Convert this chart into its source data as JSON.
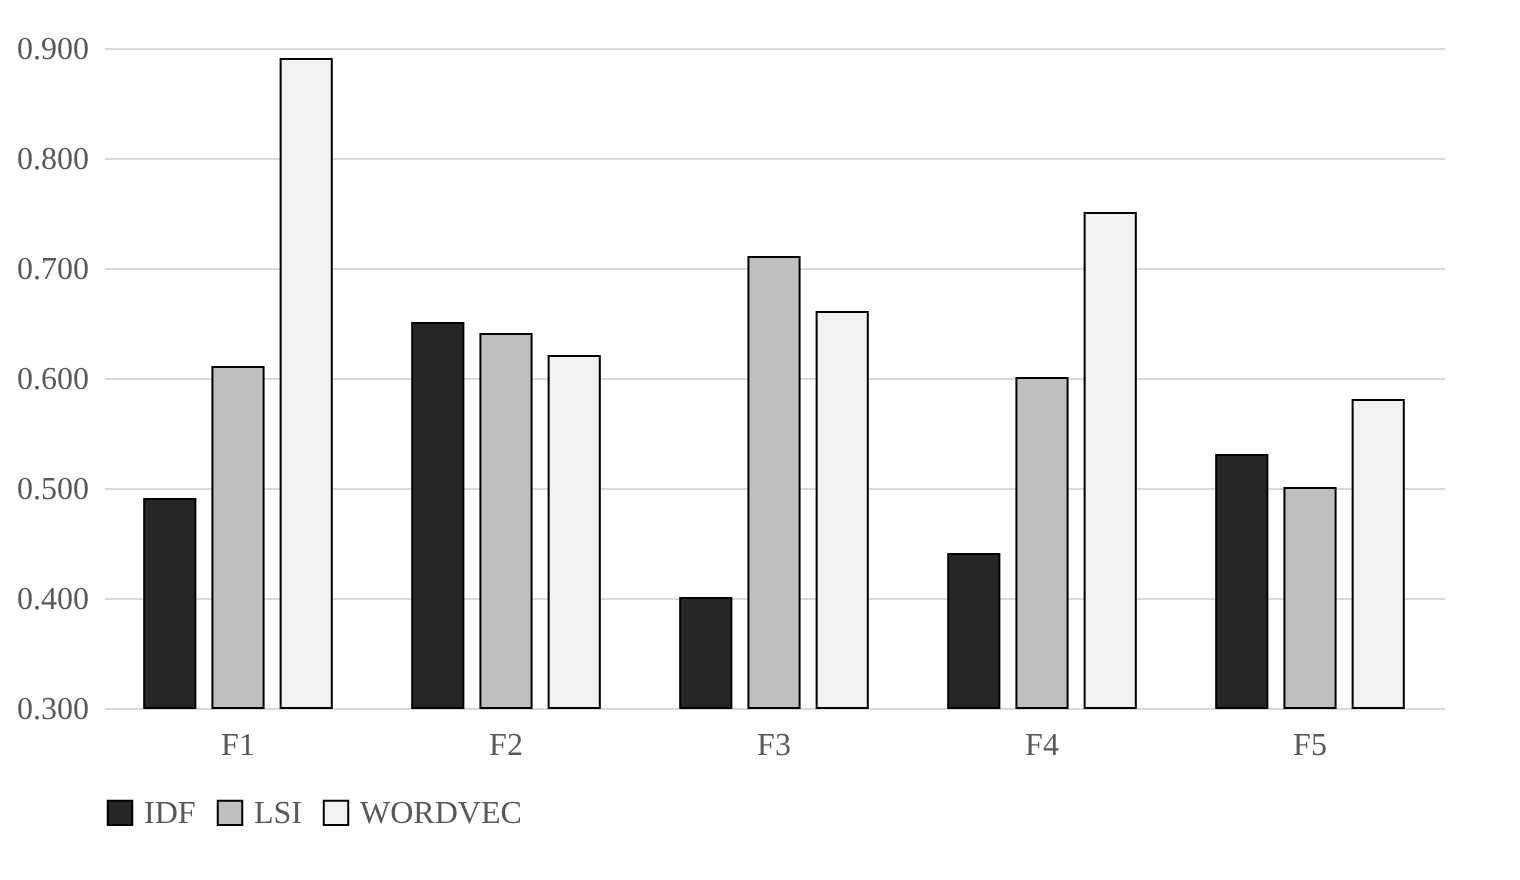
{
  "chart_data": {
    "type": "bar",
    "categories": [
      "F1",
      "F2",
      "F3",
      "F4",
      "F5"
    ],
    "series": [
      {
        "name": "IDF",
        "color": "#262626",
        "values": [
          0.49,
          0.65,
          0.4,
          0.44,
          0.53
        ]
      },
      {
        "name": "LSI",
        "color": "#bfbfbf",
        "values": [
          0.61,
          0.64,
          0.71,
          0.6,
          0.5
        ]
      },
      {
        "name": "WORDVEC",
        "color": "#f2f2f2",
        "values": [
          0.89,
          0.62,
          0.66,
          0.75,
          0.58
        ]
      }
    ],
    "ylim": [
      0.3,
      0.9
    ],
    "yticks": [
      {
        "value": 0.3,
        "label": "0.300"
      },
      {
        "value": 0.4,
        "label": "0.400"
      },
      {
        "value": 0.5,
        "label": "0.500"
      },
      {
        "value": 0.6,
        "label": "0.600"
      },
      {
        "value": 0.7,
        "label": "0.700"
      },
      {
        "value": 0.8,
        "label": "0.800"
      },
      {
        "value": 0.9,
        "label": "0.900"
      }
    ],
    "grid": "y",
    "legend": "bottom"
  }
}
